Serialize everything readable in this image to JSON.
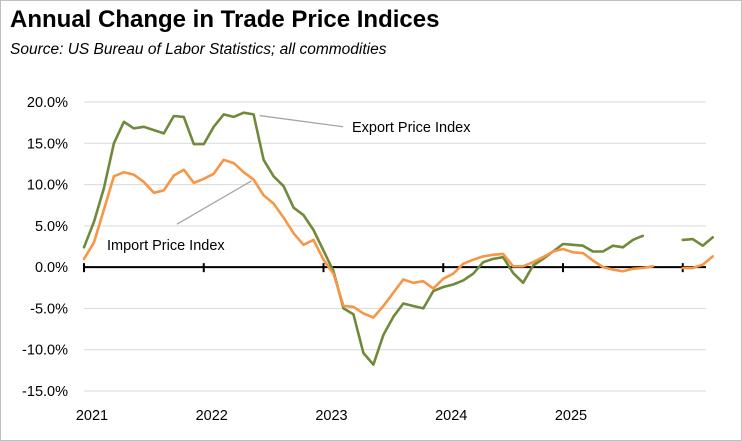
{
  "header": {
    "title": "Annual Change in Trade Price Indices",
    "subtitle": "Source:  US Bureau of Labor Statistics; all commodities"
  },
  "chart_data": {
    "type": "line",
    "title": "Annual Change in Trade Price Indices",
    "subtitle": "Source:  US Bureau of Labor Statistics; all commodities",
    "xlabel": "",
    "ylabel": "",
    "ylim": [
      -15,
      20
    ],
    "y_ticks": [
      -15,
      -10,
      -5,
      0,
      5,
      10,
      15,
      20
    ],
    "y_tick_labels": [
      "-15.0%",
      "-10.0%",
      "-5.0%",
      "0.0%",
      "5.0%",
      "10.0%",
      "15.0%",
      "20.0%"
    ],
    "x_tick_labels": [
      "2021",
      "2022",
      "2023",
      "2024",
      "2025"
    ],
    "x_label_months": [
      0,
      12,
      24,
      36,
      48
    ],
    "x_axis_tick_months": [
      0,
      12,
      24,
      36,
      48,
      60
    ],
    "x_month_range": [
      0,
      61
    ],
    "x_note": "x values are months after January 2021 (0 = Jan 2021)",
    "grid": true,
    "legend": "none",
    "series": [
      {
        "name": "Export Price Index",
        "color": "#70893a",
        "data": [
          [
            0,
            2.4
          ],
          [
            1,
            5.5
          ],
          [
            2,
            9.6
          ],
          [
            3,
            15.0
          ],
          [
            4,
            17.6
          ],
          [
            5,
            16.8
          ],
          [
            6,
            17.0
          ],
          [
            7,
            16.6
          ],
          [
            8,
            16.2
          ],
          [
            9,
            18.3
          ],
          [
            10,
            18.2
          ],
          [
            11,
            14.9
          ],
          [
            12,
            14.9
          ],
          [
            13,
            17.0
          ],
          [
            14,
            18.5
          ],
          [
            15,
            18.2
          ],
          [
            16,
            18.7
          ],
          [
            17,
            18.5
          ],
          [
            18,
            13.0
          ],
          [
            19,
            11.0
          ],
          [
            20,
            9.8
          ],
          [
            21,
            7.2
          ],
          [
            22,
            6.3
          ],
          [
            23,
            4.5
          ],
          [
            24,
            2.0
          ],
          [
            25,
            -0.5
          ],
          [
            26,
            -5.0
          ],
          [
            27,
            -5.7
          ],
          [
            28,
            -10.4
          ],
          [
            29,
            -11.8
          ],
          [
            30,
            -8.2
          ],
          [
            31,
            -6.0
          ],
          [
            32,
            -4.4
          ],
          [
            33,
            -4.7
          ],
          [
            34,
            -5.0
          ],
          [
            35,
            -2.9
          ],
          [
            36,
            -2.4
          ],
          [
            37,
            -2.1
          ],
          [
            38,
            -1.6
          ],
          [
            39,
            -0.8
          ],
          [
            40,
            0.6
          ],
          [
            41,
            1.0
          ],
          [
            42,
            1.2
          ],
          [
            43,
            -0.7
          ],
          [
            44,
            -1.9
          ],
          [
            45,
            0.2
          ],
          [
            46,
            1.0
          ],
          [
            47,
            1.9
          ],
          [
            48,
            2.8
          ],
          [
            49,
            2.7
          ],
          [
            50,
            2.6
          ],
          [
            51,
            1.9
          ],
          [
            52,
            1.9
          ],
          [
            53,
            2.6
          ],
          [
            54,
            2.4
          ],
          [
            55,
            3.3
          ],
          [
            56,
            3.8
          ],
          [
            60,
            3.3
          ],
          [
            61,
            3.4
          ],
          [
            62,
            2.6
          ],
          [
            63,
            3.6
          ]
        ]
      },
      {
        "name": "Import Price Index",
        "color": "#f79646",
        "data": [
          [
            0,
            1.0
          ],
          [
            1,
            3.0
          ],
          [
            2,
            7.0
          ],
          [
            3,
            11.0
          ],
          [
            4,
            11.5
          ],
          [
            5,
            11.2
          ],
          [
            6,
            10.3
          ],
          [
            7,
            9.0
          ],
          [
            8,
            9.3
          ],
          [
            9,
            11.1
          ],
          [
            10,
            11.8
          ],
          [
            11,
            10.2
          ],
          [
            12,
            10.7
          ],
          [
            13,
            11.3
          ],
          [
            14,
            13.0
          ],
          [
            15,
            12.6
          ],
          [
            16,
            11.5
          ],
          [
            17,
            10.6
          ],
          [
            18,
            8.7
          ],
          [
            19,
            7.7
          ],
          [
            20,
            6.0
          ],
          [
            21,
            4.1
          ],
          [
            22,
            2.7
          ],
          [
            23,
            3.3
          ],
          [
            24,
            0.9
          ],
          [
            25,
            -0.8
          ],
          [
            26,
            -4.7
          ],
          [
            27,
            -4.8
          ],
          [
            28,
            -5.6
          ],
          [
            29,
            -6.1
          ],
          [
            30,
            -4.7
          ],
          [
            31,
            -3.1
          ],
          [
            32,
            -1.5
          ],
          [
            33,
            -1.9
          ],
          [
            34,
            -1.7
          ],
          [
            35,
            -2.6
          ],
          [
            36,
            -1.4
          ],
          [
            37,
            -0.8
          ],
          [
            38,
            0.4
          ],
          [
            39,
            0.9
          ],
          [
            40,
            1.3
          ],
          [
            41,
            1.5
          ],
          [
            42,
            1.6
          ],
          [
            43,
            0.1
          ],
          [
            44,
            0.1
          ],
          [
            45,
            0.6
          ],
          [
            46,
            1.2
          ],
          [
            47,
            1.9
          ],
          [
            48,
            2.2
          ],
          [
            49,
            1.8
          ],
          [
            50,
            1.7
          ],
          [
            51,
            0.8
          ],
          [
            52,
            0.0
          ],
          [
            53,
            -0.3
          ],
          [
            54,
            -0.5
          ],
          [
            55,
            -0.2
          ],
          [
            56,
            -0.1
          ],
          [
            57,
            0.1
          ],
          [
            60,
            -0.1
          ],
          [
            61,
            -0.1
          ],
          [
            62,
            0.3
          ],
          [
            63,
            1.3
          ]
        ]
      }
    ],
    "annotations": [
      {
        "text": "Export Price Index",
        "series": "Export Price Index",
        "point_month": 17,
        "point_value": 18.6
      },
      {
        "text": "Import Price Index",
        "series": "Import Price Index",
        "point_month": 17,
        "point_value": 10.7
      }
    ]
  }
}
